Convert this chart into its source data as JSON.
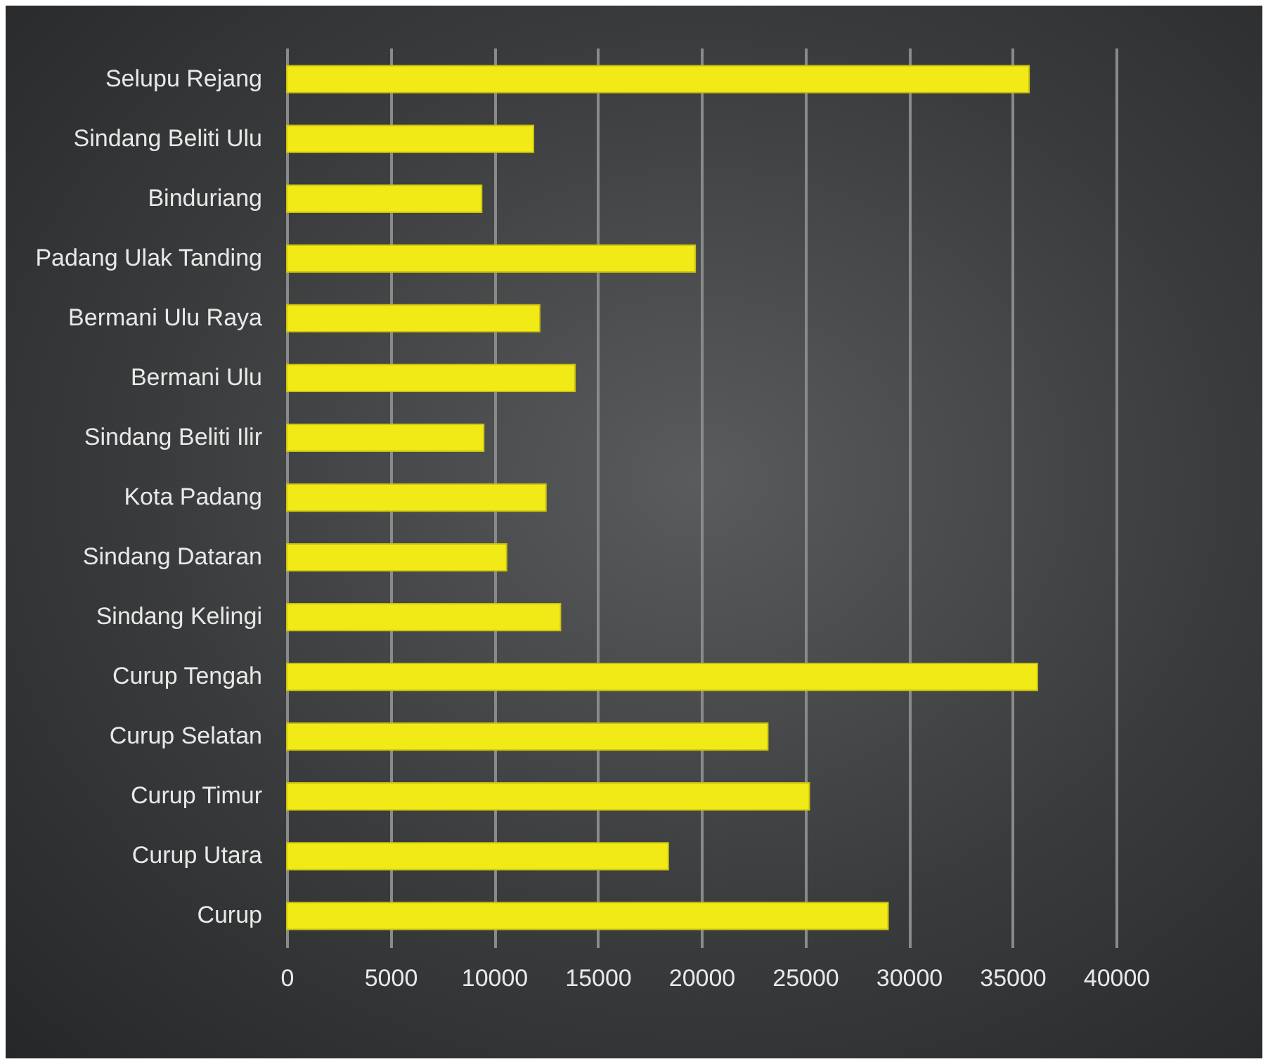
{
  "chart_data": {
    "type": "bar",
    "orientation": "horizontal",
    "categories": [
      "Selupu Rejang",
      "Sindang Beliti Ulu",
      "Binduriang",
      "Padang Ulak Tanding",
      "Bermani Ulu Raya",
      "Bermani Ulu",
      "Sindang Beliti Ilir",
      "Kota Padang",
      "Sindang Dataran",
      "Sindang Kelingi",
      "Curup Tengah",
      "Curup Selatan",
      "Curup Timur",
      "Curup Utara",
      "Curup"
    ],
    "values": [
      35800,
      11900,
      9400,
      19700,
      12200,
      13900,
      9500,
      12500,
      10600,
      13200,
      36200,
      23200,
      25200,
      18400,
      29000
    ],
    "color": "#f2ea16",
    "xlim": [
      0,
      40000
    ],
    "xticks": [
      0,
      5000,
      10000,
      15000,
      20000,
      25000,
      30000,
      35000,
      40000
    ],
    "grid": "x"
  }
}
